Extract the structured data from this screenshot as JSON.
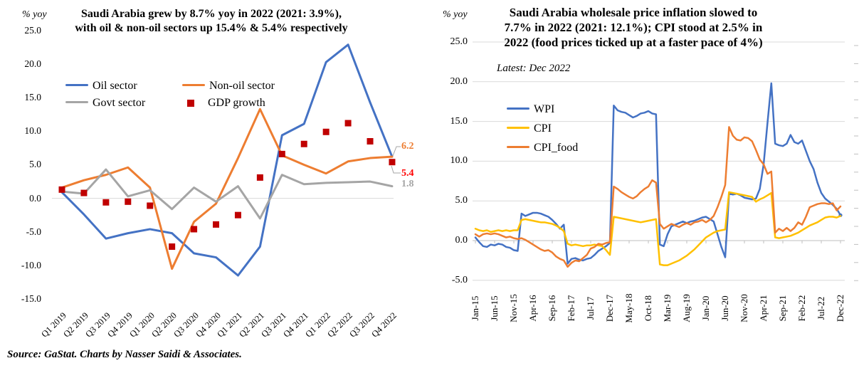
{
  "source_note": "Source: GaStat. Charts by Nasser Saidi & Associates.",
  "colors": {
    "blue": "#4472C4",
    "orange": "#ED7D31",
    "gray": "#A5A5A5",
    "yellow": "#FFC000",
    "dark_red": "#C00000",
    "bright_red": "#FF0000",
    "gridline": "#D9D9D9",
    "axis": "#BFBFBF"
  },
  "chart_data": [
    {
      "type": "line",
      "title": "Saudi Arabia grew by 8.7% yoy in 2022 (2021: 3.9%), with oil & non-oil sectors up 15.4% & 5.4% respectively",
      "title_lines": [
        "Saudi Arabia grew by 8.7% yoy in 2022 (2021: 3.9%),",
        "with oil & non-oil sectors up 15.4% & 5.4% respectively"
      ],
      "axis_unit": "% yoy",
      "ylim": [
        -15,
        25
      ],
      "ytick_step": 5,
      "y_tick_labels": [
        "25.0",
        "20.0",
        "15.0",
        "10.0",
        "5.0",
        "0.0",
        "-5.0",
        "-10.0",
        "-15.0"
      ],
      "gridlines": "zero-line-only",
      "legend_position": "inside-top-left-two-columns",
      "categories": [
        "Q1 2019",
        "Q2 2019",
        "Q3 2019",
        "Q4 2019",
        "Q1 2020",
        "Q2 2020",
        "Q3 2020",
        "Q4 2020",
        "Q1 2021",
        "Q2 2021",
        "Q3 2021",
        "Q4 2021",
        "Q1 2022",
        "Q2 2022",
        "Q3 2022",
        "Q4 2022"
      ],
      "series": [
        {
          "name": "Oil sector",
          "color": "#4472C4",
          "style": "line",
          "values": [
            0.9,
            -2.4,
            -6.0,
            -5.2,
            -4.6,
            -5.2,
            -8.2,
            -8.8,
            -11.5,
            -7.2,
            9.4,
            11.1,
            20.3,
            22.9,
            14.3,
            6.2
          ]
        },
        {
          "name": "Non-oil sector",
          "color": "#ED7D31",
          "style": "line",
          "values": [
            1.6,
            2.7,
            3.5,
            4.6,
            1.6,
            -10.5,
            -3.5,
            -0.8,
            6.0,
            13.3,
            6.4,
            5.0,
            3.7,
            5.5,
            6.0,
            6.2
          ]
        },
        {
          "name": "Govt sector",
          "color": "#A5A5A5",
          "style": "line",
          "values": [
            1.0,
            0.7,
            4.3,
            0.3,
            1.2,
            -1.6,
            1.6,
            -0.5,
            1.8,
            -3.0,
            3.5,
            2.1,
            2.3,
            2.4,
            2.5,
            1.8
          ]
        },
        {
          "name": "GDP growth",
          "color": "#C00000",
          "style": "square-markers",
          "values": [
            1.3,
            0.8,
            -0.6,
            -0.5,
            -1.1,
            -7.2,
            -4.6,
            -3.9,
            -2.5,
            3.1,
            6.6,
            8.1,
            9.9,
            11.2,
            8.5,
            5.4
          ]
        }
      ],
      "end_labels": [
        {
          "text": "6.2",
          "color": "#ED7D31",
          "refers_to": "Non-oil sector / Oil sector convergence Q4 2022"
        },
        {
          "text": "5.4",
          "color": "#FF0000",
          "refers_to": "GDP growth Q4 2022"
        },
        {
          "text": "1.8",
          "color": "#A5A5A5",
          "refers_to": "Govt sector Q4 2022"
        }
      ]
    },
    {
      "type": "line",
      "title": "Saudi Arabia wholesale price inflation slowed to 7.7% in 2022 (2021: 12.1%); CPI stood at 2.5% in 2022 (food prices ticked up at a faster pace of 4%)",
      "title_lines": [
        "Saudi Arabia wholesale price inflation slowed to",
        "7.7% in 2022 (2021: 12.1%); CPI stood at 2.5% in",
        "2022 (food prices ticked up at a faster pace of 4%)"
      ],
      "subtitle": "Latest: Dec 2022",
      "axis_unit": "% yoy",
      "ylim": [
        -5,
        25
      ],
      "ytick_step": 5,
      "y_tick_labels": [
        "25.0",
        "20.0",
        "15.0",
        "10.0",
        "5.0",
        "0.0",
        "-5.0"
      ],
      "gridlines": "horizontal-every-5",
      "legend_position": "inside-top-left-stacked",
      "x_start": "Jan-15",
      "x_end": "Dec-22",
      "x_frequency": "monthly",
      "x_tick_labels": [
        "Jan-15",
        "Jun-15",
        "Nov-15",
        "Apr-16",
        "Sep-16",
        "Feb-17",
        "Jul-17",
        "Dec-17",
        "May-18",
        "Oct-18",
        "Mar-19",
        "Aug-19",
        "Jan-20",
        "Jun-20",
        "Nov-20",
        "Apr-21",
        "Sep-21",
        "Feb-22",
        "Jul-22",
        "Dec-22"
      ],
      "x_tick_every_n_months": 5,
      "series": [
        {
          "name": "WPI",
          "color": "#4472C4",
          "style": "line",
          "end_dot": true,
          "values": [
            0.4,
            -0.2,
            -0.7,
            -0.8,
            -0.5,
            -0.6,
            -0.4,
            -0.5,
            -0.8,
            -0.9,
            -1.2,
            -1.3,
            3.4,
            3.1,
            3.3,
            3.5,
            3.5,
            3.4,
            3.2,
            3.0,
            2.6,
            2.1,
            1.5,
            2.0,
            -2.9,
            -2.3,
            -2.2,
            -2.4,
            -2.5,
            -2.3,
            -2.2,
            -1.8,
            -1.3,
            -1.0,
            -0.7,
            -0.3,
            17.0,
            16.4,
            16.2,
            16.1,
            15.8,
            15.5,
            15.7,
            16.0,
            16.1,
            16.3,
            16.0,
            15.9,
            -0.5,
            -0.7,
            0.8,
            1.8,
            2.0,
            2.2,
            2.4,
            2.2,
            2.4,
            2.5,
            2.7,
            2.9,
            3.0,
            2.7,
            2.4,
            0.8,
            -0.8,
            -2.1,
            5.9,
            5.8,
            5.9,
            5.7,
            5.4,
            5.3,
            5.2,
            5.3,
            6.5,
            9.6,
            14.8,
            19.8,
            12.2,
            12.0,
            11.9,
            12.2,
            13.3,
            12.4,
            12.2,
            12.6,
            11.3,
            10.0,
            9.0,
            7.3,
            6.0,
            5.3,
            4.9,
            4.5,
            4.0,
            3.2
          ]
        },
        {
          "name": "CPI",
          "color": "#FFC000",
          "style": "line",
          "values": [
            1.5,
            1.3,
            1.2,
            1.3,
            1.1,
            1.2,
            1.3,
            1.2,
            1.3,
            1.2,
            1.3,
            1.3,
            2.6,
            2.7,
            2.6,
            2.5,
            2.4,
            2.3,
            2.3,
            2.2,
            2.1,
            1.9,
            1.6,
            1.2,
            -0.4,
            -0.6,
            -0.5,
            -0.6,
            -0.7,
            -0.6,
            -0.6,
            -0.5,
            -0.6,
            -0.7,
            -1.2,
            -1.8,
            3.0,
            2.9,
            2.8,
            2.7,
            2.6,
            2.5,
            2.4,
            2.3,
            2.4,
            2.5,
            2.6,
            2.7,
            -3.0,
            -3.1,
            -3.1,
            -2.9,
            -2.7,
            -2.5,
            -2.2,
            -1.9,
            -1.5,
            -1.1,
            -0.6,
            -0.1,
            0.4,
            0.7,
            1.0,
            1.2,
            1.3,
            1.4,
            6.1,
            6.0,
            5.9,
            5.8,
            5.7,
            5.6,
            5.5,
            4.9,
            5.2,
            5.4,
            5.7,
            6.0,
            0.4,
            0.3,
            0.4,
            0.5,
            0.6,
            0.8,
            1.0,
            1.3,
            1.6,
            1.9,
            2.1,
            2.3,
            2.6,
            2.9,
            3.0,
            3.0,
            2.9,
            3.1
          ]
        },
        {
          "name": "CPI_food",
          "color": "#ED7D31",
          "style": "line",
          "values": [
            0.8,
            0.5,
            0.8,
            0.9,
            0.8,
            0.9,
            0.8,
            0.6,
            0.4,
            0.5,
            0.3,
            0.2,
            0.3,
            0.1,
            -0.2,
            -0.5,
            -0.8,
            -1.1,
            -1.3,
            -1.2,
            -1.5,
            -2.0,
            -2.3,
            -2.5,
            -3.3,
            -2.8,
            -2.5,
            -2.6,
            -2.2,
            -1.8,
            -1.0,
            -0.8,
            -0.4,
            -0.5,
            -0.3,
            -0.2,
            6.8,
            6.5,
            6.1,
            5.8,
            5.5,
            5.3,
            5.6,
            6.1,
            6.5,
            6.8,
            7.6,
            7.3,
            2.1,
            1.5,
            1.8,
            2.1,
            1.9,
            1.7,
            2.0,
            2.2,
            2.0,
            2.3,
            2.4,
            2.6,
            2.3,
            2.6,
            3.1,
            4.2,
            5.5,
            7.0,
            14.3,
            13.2,
            12.7,
            12.6,
            13.0,
            12.9,
            12.5,
            11.4,
            10.2,
            9.6,
            8.4,
            8.7,
            1.0,
            1.5,
            1.2,
            1.6,
            1.2,
            1.6,
            2.3,
            2.0,
            3.0,
            4.2,
            4.4,
            4.6,
            4.7,
            4.7,
            4.6,
            4.7,
            3.8,
            4.3
          ]
        }
      ]
    }
  ]
}
